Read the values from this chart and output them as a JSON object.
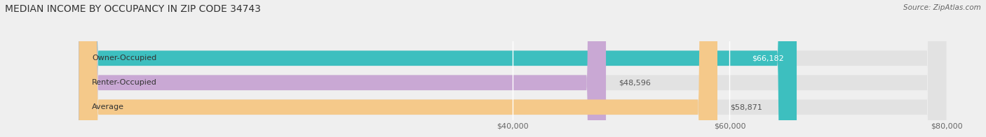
{
  "title": "MEDIAN INCOME BY OCCUPANCY IN ZIP CODE 34743",
  "source": "Source: ZipAtlas.com",
  "categories": [
    "Owner-Occupied",
    "Renter-Occupied",
    "Average"
  ],
  "values": [
    66182,
    48596,
    58871
  ],
  "bar_colors": [
    "#3dbfbf",
    "#c9a8d4",
    "#f5c98a"
  ],
  "bar_labels": [
    "$66,182",
    "$48,596",
    "$58,871"
  ],
  "label_inside": [
    true,
    false,
    false
  ],
  "label_colors_inside": "#ffffff",
  "label_colors_outside": "#555555",
  "xmin": 0,
  "xmax": 80000,
  "xticks": [
    40000,
    60000,
    80000
  ],
  "xtick_labels": [
    "$40,000",
    "$60,000",
    "$80,000"
  ],
  "background_color": "#efefef",
  "bar_background_color": "#e2e2e2",
  "title_fontsize": 10,
  "source_fontsize": 7.5,
  "tick_fontsize": 8,
  "label_fontsize": 8,
  "cat_fontsize": 8
}
